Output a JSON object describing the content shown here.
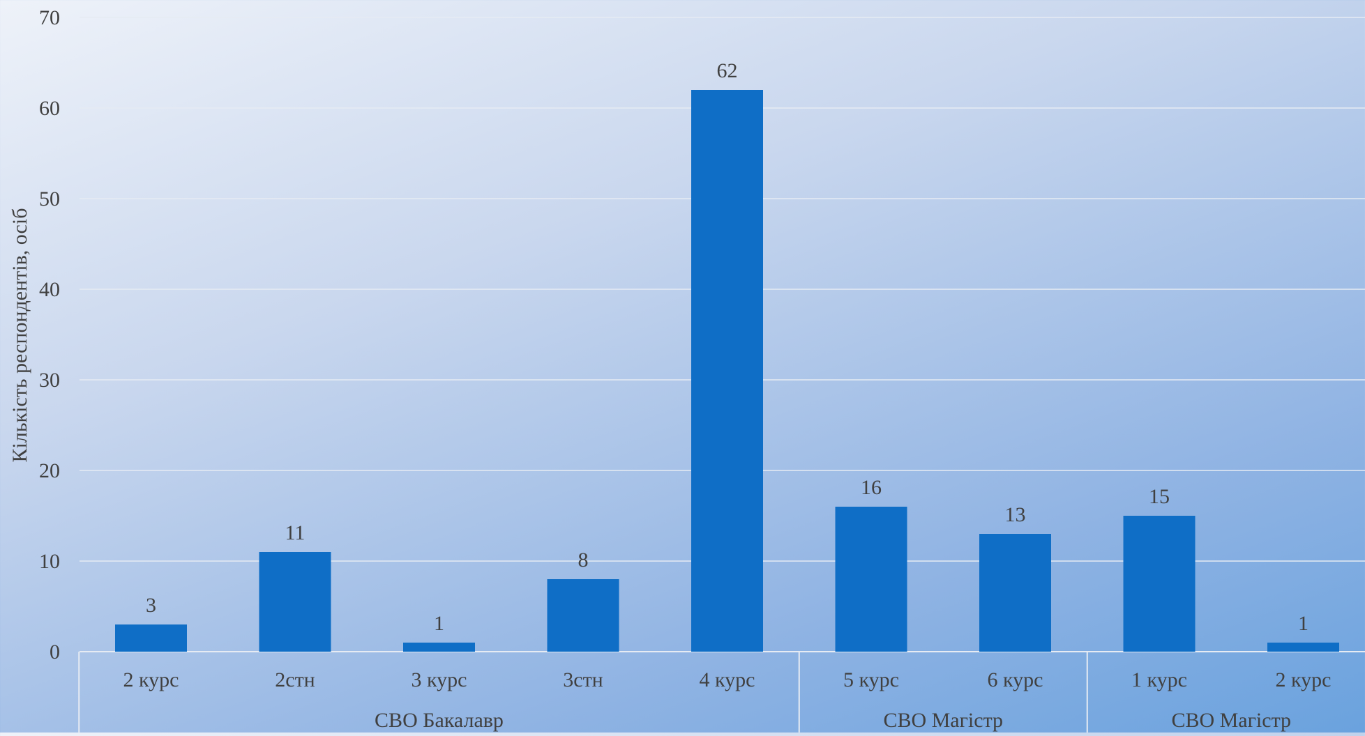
{
  "chart_data": {
    "type": "bar",
    "ylabel": "Кількість респондентів, осіб",
    "ylim": [
      0,
      70
    ],
    "yticks": [
      0,
      10,
      20,
      30,
      40,
      50,
      60,
      70
    ],
    "grid": true,
    "groups": [
      {
        "label": "СВО Бакалавр",
        "categories": [
          "2 курс",
          "2стн",
          "3 курс",
          "3стн",
          "4 курс"
        ],
        "values": [
          3,
          11,
          1,
          8,
          62
        ]
      },
      {
        "label": "СВО Магістр",
        "categories": [
          "5 курс",
          "6 курс"
        ],
        "values": [
          16,
          13
        ]
      },
      {
        "label": "СВО Магістр",
        "categories": [
          "1 курс",
          "2 курс"
        ],
        "values": [
          15,
          1
        ]
      }
    ],
    "bar_color": "#0f6ec6",
    "gridline_color": "#e6ebf3",
    "text_color": "#404040"
  }
}
